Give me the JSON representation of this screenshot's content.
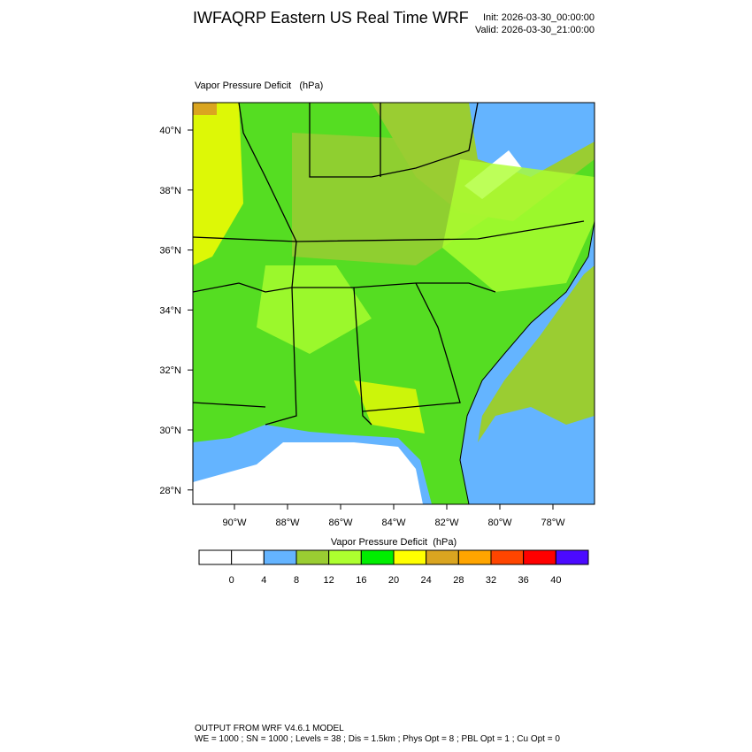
{
  "header": {
    "title": "IWFAQRP Eastern US Real Time WRF",
    "init": "Init: 2026-03-30_00:00:00",
    "valid": "Valid: 2026-03-30_21:00:00"
  },
  "map": {
    "label": "Vapor Pressure Deficit   (hPa)",
    "lat_labels": [
      "40°N",
      "38°N",
      "36°N",
      "34°N",
      "32°N",
      "30°N",
      "28°N"
    ],
    "lon_labels": [
      "90°W",
      "88°W",
      "86°W",
      "84°W",
      "82°W",
      "80°W",
      "78°W"
    ]
  },
  "colorbar": {
    "title": "Vapor Pressure Deficit  (hPa)",
    "levels": [
      0,
      4,
      8,
      12,
      16,
      20,
      24,
      28,
      32,
      36,
      40
    ],
    "colors": [
      "#ffffff",
      "#ffffff",
      "#64b4ff",
      "#9acd32",
      "#adff2f",
      "#00ee00",
      "#ffff00",
      "#daa520",
      "#ffa500",
      "#ff4500",
      "#ff0000",
      "#4b0aff"
    ]
  },
  "footer": {
    "line1": "OUTPUT FROM WRF V4.6.1 MODEL",
    "line2": "WE = 1000 ; SN = 1000 ; Levels = 38 ; Dis = 1.5km ; Phys Opt = 8 ; PBL Opt = 1 ; Cu Opt = 0"
  }
}
